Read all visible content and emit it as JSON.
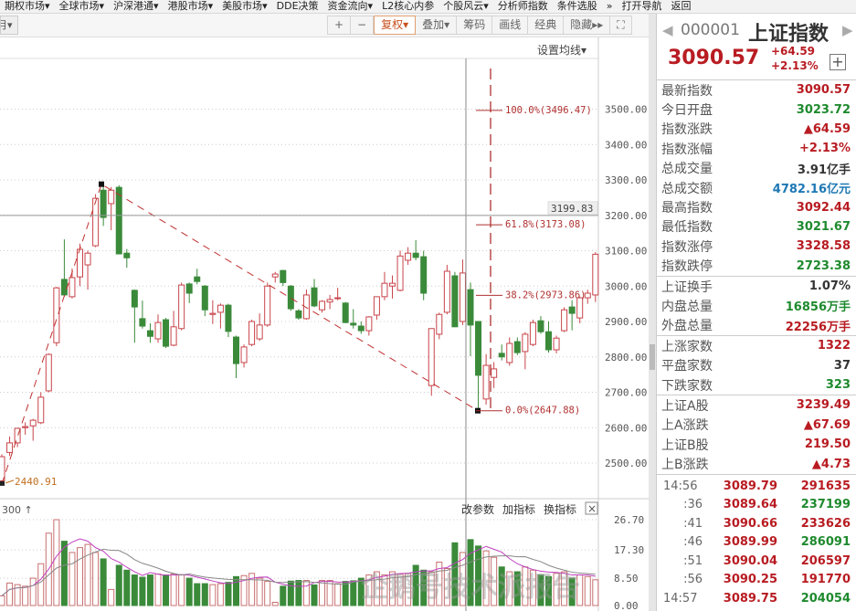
{
  "menu": [
    "期权市场▾",
    "全球市场▾",
    "沪深港通▾",
    "港股市场▾",
    "美股市场▾",
    "DDE决策",
    "资金流向▾",
    "L2核心内参",
    "个股风云▾",
    "分析师指数",
    "条件选股",
    "»",
    "打开导航",
    "返回"
  ],
  "toolbar": {
    "period": "月▾",
    "buttons": [
      "+",
      "−",
      "复权▾",
      "叠加▾",
      "筹码",
      "画线",
      "经典",
      "隐藏▸▸",
      "⛶"
    ],
    "active": "复权▾",
    "set_ma": "设置均线▾"
  },
  "colors": {
    "up": "#c8444a",
    "down": "#3a8a3a",
    "ma5": "#c040c0",
    "ma10": "#888888",
    "fib": "#b03030",
    "low_label": "#c07020"
  },
  "price_axis": {
    "labels": [
      "3500.00",
      "3400.00",
      "3300.00",
      "3200.00",
      "3100.00",
      "3000.00",
      "2900.00",
      "2800.00",
      "2700.00",
      "2600.00",
      "2500.00"
    ],
    "values": [
      3500,
      3400,
      3300,
      3200,
      3100,
      3000,
      2900,
      2800,
      2700,
      2600,
      2500
    ],
    "crosshair_label": "3199.83",
    "crosshair_value": 3199.83
  },
  "annotations": {
    "low": "2440.91",
    "low_value": 2440.91,
    "high_value": 3288,
    "end_value": 2647.88
  },
  "fib": [
    {
      "label": "100.0%(3496.47)",
      "value": 3496.47
    },
    {
      "label": "61.8%(3173.08)",
      "value": 3173.08
    },
    {
      "label": "38.2%(2973.86)",
      "value": 2973.86
    },
    {
      "label": "0.0%(2647.88)",
      "value": 2647.88
    }
  ],
  "volume_panel": {
    "label": "300 ↑",
    "buttons": [
      "改参数",
      "加指标",
      "换指标"
    ],
    "close": "×",
    "axis_labels": [
      "26.70",
      "17.30",
      "8.50",
      "0.00"
    ],
    "axis_values": [
      26.7,
      17.3,
      8.5,
      0
    ]
  },
  "chart_data": {
    "type": "candlestick",
    "ohlc_order": [
      "open",
      "high",
      "low",
      "close"
    ],
    "candles": [
      [
        2450,
        2525,
        2441,
        2518
      ],
      [
        2530,
        2575,
        2520,
        2557
      ],
      [
        2557,
        2600,
        2545,
        2598
      ],
      [
        2600,
        2615,
        2580,
        2603
      ],
      [
        2605,
        2625,
        2563,
        2621
      ],
      [
        2614,
        2700,
        2610,
        2686
      ],
      [
        2704,
        2810,
        2700,
        2807
      ],
      [
        2840,
        2998,
        2830,
        2995
      ],
      [
        3019,
        3132,
        2970,
        2975
      ],
      [
        2970,
        3050,
        2965,
        3024
      ],
      [
        3026,
        3120,
        3000,
        3104
      ],
      [
        3060,
        3100,
        2990,
        3093
      ],
      [
        3114,
        3260,
        3110,
        3248
      ],
      [
        3271,
        3288,
        3170,
        3194
      ],
      [
        3233,
        3280,
        3158,
        3271
      ],
      [
        3279,
        3285,
        3091,
        3091
      ],
      [
        3093,
        3105,
        3052,
        3080
      ],
      [
        2988,
        2990,
        2840,
        2941
      ],
      [
        2908,
        2959,
        2880,
        2887
      ],
      [
        2874,
        2895,
        2840,
        2858
      ],
      [
        2851,
        2920,
        2840,
        2897
      ],
      [
        2905,
        2910,
        2825,
        2830
      ],
      [
        2833,
        2930,
        2830,
        2885
      ],
      [
        2880,
        3010,
        2875,
        3003
      ],
      [
        3006,
        3010,
        2952,
        2980
      ],
      [
        3026,
        3049,
        3005,
        3013
      ],
      [
        3000,
        3003,
        2915,
        2933
      ],
      [
        2920,
        2960,
        2893,
        2923
      ],
      [
        2926,
        2951,
        2880,
        2946
      ],
      [
        2946,
        2950,
        2856,
        2872
      ],
      [
        2856,
        2860,
        2740,
        2781
      ],
      [
        2784,
        2835,
        2770,
        2828
      ],
      [
        2835,
        2905,
        2830,
        2900
      ],
      [
        2851,
        2923,
        2845,
        2890
      ],
      [
        2890,
        3010,
        2885,
        3000
      ],
      [
        3026,
        3040,
        3010,
        3034
      ],
      [
        3044,
        3046,
        3000,
        3010
      ],
      [
        3000,
        3003,
        2930,
        2936
      ],
      [
        2930,
        2935,
        2905,
        2910
      ],
      [
        2908,
        2990,
        2905,
        2975
      ],
      [
        2995,
        3020,
        2940,
        2944
      ],
      [
        2933,
        2960,
        2925,
        2957
      ],
      [
        2955,
        2975,
        2935,
        2962
      ],
      [
        2965,
        2995,
        2960,
        2967
      ],
      [
        2952,
        2955,
        2895,
        2897
      ],
      [
        2895,
        2935,
        2880,
        2890
      ],
      [
        2887,
        2900,
        2865,
        2874
      ],
      [
        2874,
        2915,
        2860,
        2913
      ],
      [
        2918,
        2970,
        2905,
        2970
      ],
      [
        2970,
        3040,
        2960,
        3008
      ],
      [
        3000,
        3030,
        2965,
        3008
      ],
      [
        2988,
        3100,
        2985,
        3085
      ],
      [
        3073,
        3110,
        3060,
        3093
      ],
      [
        3093,
        3130,
        3073,
        3081
      ],
      [
        3083,
        3100,
        2960,
        2980
      ],
      [
        2719,
        2880,
        2690,
        2880
      ],
      [
        2864,
        2925,
        2850,
        2920
      ],
      [
        2926,
        3060,
        2920,
        3042
      ],
      [
        3029,
        3040,
        2885,
        2885
      ],
      [
        2900,
        3075,
        2890,
        3037
      ],
      [
        2990,
        3010,
        2802,
        2890
      ],
      [
        2900,
        2900,
        2648,
        2748
      ],
      [
        2681,
        2808,
        2665,
        2776
      ],
      [
        2742,
        2785,
        2712,
        2766
      ],
      [
        2810,
        2835,
        2790,
        2800
      ],
      [
        2784,
        2855,
        2775,
        2838
      ],
      [
        2843,
        2855,
        2805,
        2812
      ],
      [
        2815,
        2870,
        2765,
        2864
      ],
      [
        2835,
        2905,
        2830,
        2897
      ],
      [
        2902,
        2915,
        2865,
        2871
      ],
      [
        2871,
        2900,
        2812,
        2820
      ],
      [
        2820,
        2860,
        2810,
        2853
      ],
      [
        2874,
        2940,
        2870,
        2933
      ],
      [
        2941,
        2960,
        2875,
        2923
      ],
      [
        2910,
        2970,
        2895,
        2967
      ],
      [
        2967,
        2990,
        2950,
        2980
      ],
      [
        2975,
        3096,
        2955,
        3090
      ]
    ],
    "volume": [
      3,
      7,
      6.5,
      6,
      8.5,
      13,
      22.5,
      26.7,
      20,
      16.5,
      18,
      19,
      16.5,
      14.5,
      5,
      12.5,
      11,
      9.5,
      8.8,
      9.5,
      9.8,
      9.5,
      9.8,
      9.5,
      8.5,
      6.8,
      6.8,
      6.5,
      6.8,
      7.2,
      9,
      9.3,
      10,
      8.5,
      7.5,
      1,
      6,
      7.6,
      7.8,
      7.8,
      6.4,
      7.8,
      7.8,
      6.8,
      7.5,
      7.7,
      8.5,
      9.5,
      10.5,
      9.5,
      10.5,
      9.8,
      10,
      12.5,
      11,
      10.5,
      13.5,
      11.5,
      19.5,
      16.5,
      20.5,
      18.5,
      17,
      15,
      12,
      10.5,
      10.5,
      12,
      11,
      9.5,
      9,
      10,
      10.5,
      8.5,
      9.5,
      9,
      8
    ],
    "ylim": [
      2440,
      3500
    ],
    "volume_ylim": [
      0,
      26.7
    ],
    "volume_ma": [
      5,
      10
    ],
    "grid": true
  },
  "panel": {
    "code": "000001",
    "name": "上证指数",
    "price": "3090.57",
    "change": "+64.59",
    "change_pct": "+2.13%",
    "plus": "+",
    "groups": [
      [
        {
          "label": "最新指数",
          "value": "3090.57",
          "color": "red"
        },
        {
          "label": "今日开盘",
          "value": "3023.72",
          "color": "green"
        },
        {
          "label": "指数涨跌",
          "value": "▲64.59",
          "color": "red"
        },
        {
          "label": "指数涨幅",
          "value": "+2.13%",
          "color": "red"
        },
        {
          "label": "总成交量",
          "value": "3.91亿手",
          "color": "dark"
        },
        {
          "label": "总成交额",
          "value": "4782.16亿元",
          "color": "blue"
        },
        {
          "label": "最高指数",
          "value": "3092.44",
          "color": "red"
        },
        {
          "label": "最低指数",
          "value": "3021.67",
          "color": "green"
        },
        {
          "label": "指数涨停",
          "value": "3328.58",
          "color": "red"
        },
        {
          "label": "指数跌停",
          "value": "2723.38",
          "color": "green"
        }
      ],
      [
        {
          "label": "上证换手",
          "value": "1.07%",
          "color": "dark"
        },
        {
          "label": "内盘总量",
          "value": "16856万手",
          "color": "green"
        },
        {
          "label": "外盘总量",
          "value": "22256万手",
          "color": "red"
        }
      ],
      [
        {
          "label": "上涨家数",
          "value": "1322",
          "color": "red"
        },
        {
          "label": "平盘家数",
          "value": "37",
          "color": "dark"
        },
        {
          "label": "下跌家数",
          "value": "323",
          "color": "green"
        }
      ],
      [
        {
          "label": "上证A股",
          "value": "3239.49",
          "color": "red"
        },
        {
          "label": "上A涨跌",
          "value": "▲67.69",
          "color": "red"
        },
        {
          "label": "上证B股",
          "value": "219.50",
          "color": "red"
        },
        {
          "label": "上B涨跌",
          "value": "▲4.73",
          "color": "red"
        }
      ]
    ],
    "ticks": [
      {
        "time": "14:56",
        "price": "3089.79",
        "vol": "291635",
        "vcolor": "red"
      },
      {
        "time": ":36",
        "price": "3089.64",
        "vol": "237199",
        "vcolor": "green"
      },
      {
        "time": ":41",
        "price": "3090.66",
        "vol": "233626",
        "vcolor": "red"
      },
      {
        "time": ":46",
        "price": "3089.99",
        "vol": "286091",
        "vcolor": "green"
      },
      {
        "time": ":51",
        "price": "3090.04",
        "vol": "206597",
        "vcolor": "red"
      },
      {
        "time": ":56",
        "price": "3090.25",
        "vol": "191770",
        "vcolor": "red"
      },
      {
        "time": "14:57",
        "price": "3089.75",
        "vol": "204054",
        "vcolor": "green"
      }
    ]
  },
  "watermark": "企鹅号技术派报告"
}
